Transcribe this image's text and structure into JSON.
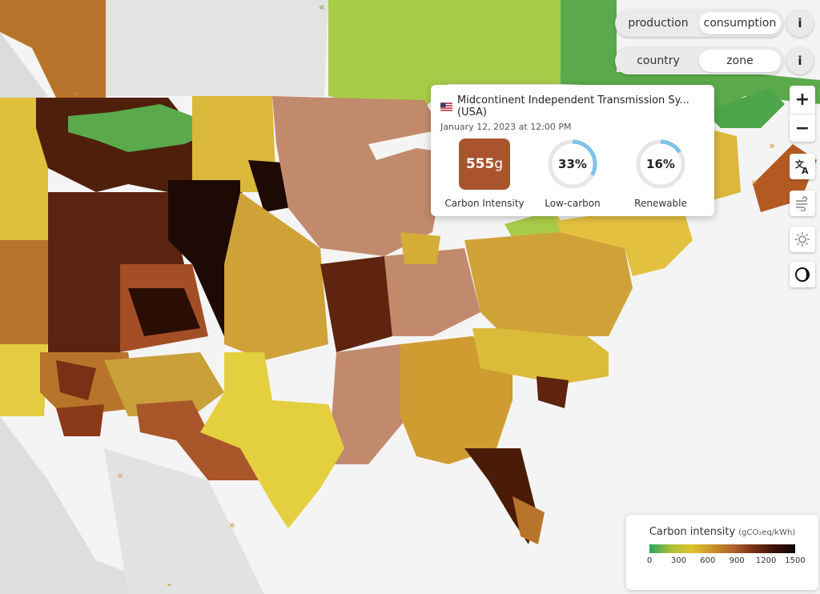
{
  "toggles": {
    "mode": {
      "options": [
        "production",
        "consumption"
      ],
      "active": 1
    },
    "view": {
      "options": [
        "country",
        "zone"
      ],
      "active": 1
    },
    "info_label": "i"
  },
  "controls": {
    "zoom_in": "+",
    "zoom_out": "−",
    "icons": [
      "translate-icon",
      "wind-icon",
      "sun-icon",
      "dark-mode-icon"
    ]
  },
  "tooltip": {
    "zone_name": "Midcontinent Independent Transmission Sy... (USA)",
    "datetime": "January 12, 2023 at 12:00 PM",
    "carbon_intensity": {
      "value": "555",
      "unit": "g",
      "label": "Carbon Intensity",
      "color": "#a9542d"
    },
    "low_carbon": {
      "value": "33%",
      "fraction": 0.33,
      "label": "Low-carbon"
    },
    "renewable": {
      "value": "16%",
      "fraction": 0.16,
      "label": "Renewable"
    }
  },
  "legend": {
    "title": "Carbon intensity",
    "unit": "(gCO₂eq/kWh)",
    "ticks": [
      0,
      300,
      600,
      900,
      1200,
      1500
    ],
    "colors": [
      "#2aa364",
      "#a4c03c",
      "#dec42c",
      "#c9942a",
      "#b1622c",
      "#7a3016",
      "#3b1208",
      "#0e0502"
    ]
  }
}
